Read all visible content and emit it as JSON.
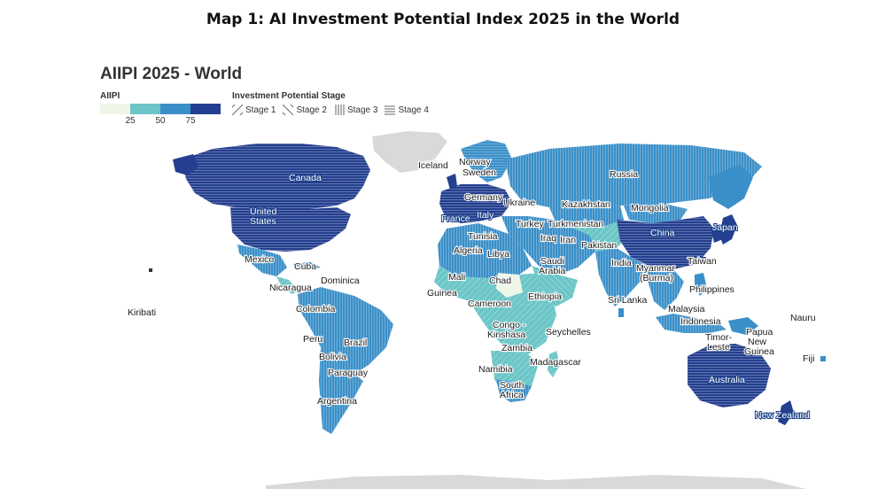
{
  "page_title": "Map 1: AI Investment Potential Index 2025 in the World",
  "map_title": "AIIPI 2025 - World",
  "legend": {
    "aiipi_title": "AIIPI",
    "scale_colors": [
      "#eef6e8",
      "#6cc6c7",
      "#3a8fc8",
      "#233f92"
    ],
    "ticks": [
      "25",
      "50",
      "75"
    ],
    "stage_title": "Investment Potential Stage",
    "stages": [
      {
        "label": "Stage 1",
        "pattern": "diagonal-right"
      },
      {
        "label": "Stage 2",
        "pattern": "diagonal-left"
      },
      {
        "label": "Stage 3",
        "pattern": "vertical"
      },
      {
        "label": "Stage 4",
        "pattern": "horizontal"
      }
    ]
  },
  "countries": {
    "canada": "Canada",
    "united_states": "United\nStates",
    "mexico": "Mexico",
    "cuba": "Cuba",
    "dominica": "Dominica",
    "nicaragua": "Nicaragua",
    "kiribati": "Kiribati",
    "colombia": "Colombia",
    "peru": "Peru",
    "brazil": "Brazil",
    "bolivia": "Bolivia",
    "paraguay": "Paraguay",
    "argentina": "Argentina",
    "iceland": "Iceland",
    "norway": "Norway",
    "sweden": "Sweden",
    "germany": "Germany",
    "france": "France",
    "italy": "Italy",
    "ukraine": "Ukraine",
    "russia": "Russia",
    "kazakhstan": "Kazakhstan",
    "mongolia": "Mongolia",
    "turkey": "Turkey",
    "turkmenistan": "Turkmenistan",
    "china": "China",
    "japan": "Japan",
    "iraq": "Iraq",
    "iran": "Iran",
    "pakistan": "Pakistan",
    "tunisia": "Tunisia",
    "algeria": "Algeria",
    "libya": "Libya",
    "saudi_arabia": "Saudi\nArabia",
    "india": "India",
    "myanmar": "Myanmar\n(Burma)",
    "taiwan": "Taiwan",
    "mali": "Mali",
    "chad": "Chad",
    "guinea": "Guinea",
    "ethiopia": "Ethiopia",
    "cameroon": "Cameroon",
    "sri_lanka": "Sri Lanka",
    "philippines": "Philippines",
    "malaysia": "Malaysia",
    "nauru": "Nauru",
    "congo_kinshasa": "Congo -\nKinshasa",
    "seychelles": "Seychelles",
    "indonesia": "Indonesia",
    "papua_new_guinea": "Papua\nNew\nGuinea",
    "timor_leste": "Timor-\nLeste",
    "zambia": "Zambia",
    "madagascar": "Madagascar",
    "namibia": "Namibia",
    "fiji": "Fiji",
    "australia": "Australia",
    "south_africa": "South\nAfrica",
    "new_zealand": "New Zealand"
  }
}
